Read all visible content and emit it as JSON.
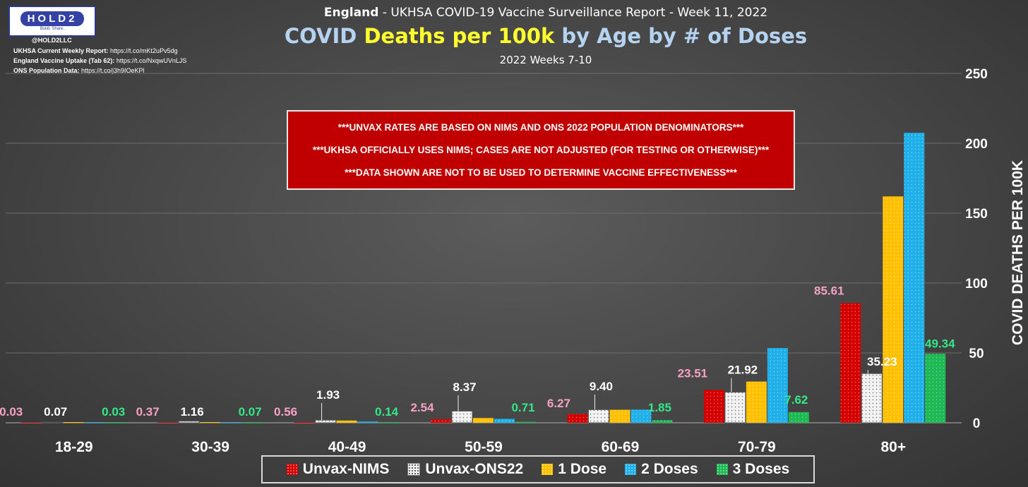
{
  "header": {
    "logo_text": "HOLD2",
    "logo_tagline": "Build. Share.",
    "handle": "@HOLD2LLC",
    "sources": [
      {
        "label": "UKHSA Current Weekly Report:",
        "value": " https://t.co/mKt2uPv5dg"
      },
      {
        "label": "England Vaccine Uptake (Tab 62):",
        "value": " https://t.co/NxqwUVnLJS"
      },
      {
        "label": "ONS Population Data:",
        "value": " https://t.co/j3h9IOeKPl"
      }
    ],
    "supertitle_bold": "England",
    "supertitle_rest": " - UKHSA COVID-19 Vaccine Surveillance Report - Week 11, 2022",
    "title_part1": "COVID ",
    "title_highlight": "Deaths per 100k",
    "title_part2": " by Age by # of Doses",
    "subtitle": "2022 Weeks 7-10"
  },
  "notice": {
    "lines": [
      "***UNVAX RATES ARE BASED ON NIMS AND ONS 2022 POPULATION DENOMINATORS***",
      "***UKHSA OFFICIALLY USES NIMS; CASES ARE NOT ADJUSTED (FOR TESTING OR OTHERWISE)***",
      "***DATA SHOWN ARE NOT TO BE USED TO DETERMINE VACCINE EFFECTIVENESS***"
    ]
  },
  "chart_data": {
    "type": "bar",
    "title": "COVID Deaths per 100k by Age by # of Doses",
    "ylabel": "COVID DEATHS PER 100K",
    "ylim": [
      0,
      250
    ],
    "yticks": [
      0,
      50,
      100,
      150,
      200,
      250
    ],
    "y_axis_side": "right",
    "grid": true,
    "legend_position": "bottom",
    "categories": [
      "18-29",
      "30-39",
      "40-49",
      "50-59",
      "60-69",
      "70-79",
      "80+"
    ],
    "series": [
      {
        "name": "Unvax-NIMS",
        "color": "#d40000",
        "label_color": "#f7a1c4",
        "values": [
          0.03,
          0.37,
          0.56,
          2.54,
          6.27,
          23.51,
          85.61
        ],
        "labels": [
          "0.03",
          "0.37",
          "0.56",
          "2.54",
          "6.27",
          "23.51",
          "85.61"
        ]
      },
      {
        "name": "Unvax-ONS22",
        "color": "#f2f2f2",
        "label_color": "#ffffff",
        "values": [
          0.07,
          1.16,
          1.93,
          8.37,
          9.4,
          21.92,
          35.23
        ],
        "labels": [
          "0.07",
          "1.16",
          "1.93",
          "8.37",
          "9.40",
          "21.92",
          "35.23"
        ]
      },
      {
        "name": "1 Dose",
        "color": "#ffc000",
        "label_color": null,
        "values": [
          0.3,
          0.1,
          1.6,
          3.4,
          9.3,
          29.5,
          162.0
        ],
        "labels": [
          null,
          null,
          null,
          null,
          null,
          null,
          null
        ]
      },
      {
        "name": "2 Doses",
        "color": "#1fb0ea",
        "label_color": null,
        "values": [
          0.1,
          0.2,
          0.9,
          2.8,
          9.4,
          53.5,
          207.5
        ],
        "labels": [
          null,
          null,
          null,
          null,
          null,
          null,
          null
        ]
      },
      {
        "name": "3 Doses",
        "color": "#1cb954",
        "label_color": "#33e887",
        "values": [
          0.03,
          0.07,
          0.14,
          0.71,
          1.85,
          7.62,
          49.34
        ],
        "labels": [
          "0.03",
          "0.07",
          "0.14",
          "0.71",
          "1.85",
          "7.62",
          "49.34"
        ]
      }
    ]
  }
}
